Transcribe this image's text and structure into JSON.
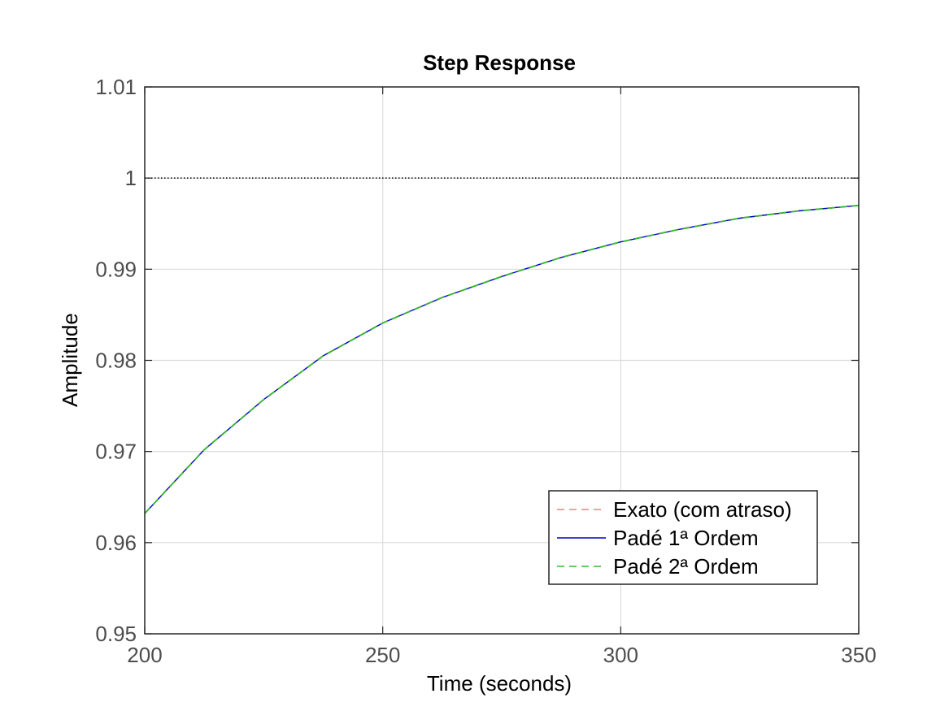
{
  "chart_data": {
    "type": "line",
    "title": "Step Response",
    "xlabel": "Time (seconds)",
    "ylabel": "Amplitude",
    "xlim": [
      200,
      350
    ],
    "ylim": [
      0.95,
      1.01
    ],
    "grid": true,
    "legend_position": "bottom-right",
    "x_ticks": [
      200,
      250,
      300,
      350
    ],
    "x_tick_labels": [
      "200",
      "250",
      "300",
      "350"
    ],
    "y_ticks": [
      0.95,
      0.96,
      0.97,
      0.98,
      0.99,
      1.0,
      1.01
    ],
    "y_tick_labels": [
      "0.95",
      "0.96",
      "0.97",
      "0.98",
      "0.99",
      "1",
      "1.01"
    ],
    "reference_line": {
      "y": 1.0,
      "color": "#000000",
      "style": "dotted"
    },
    "x": [
      200,
      212.5,
      225,
      237.5,
      250,
      262.5,
      275,
      287.5,
      300,
      312.5,
      325,
      337.5,
      350
    ],
    "series": [
      {
        "name": "Exato (com atraso)",
        "color": "#f08080",
        "style": "dashed",
        "values": [
          0.9632,
          0.9702,
          0.9757,
          0.9805,
          0.9841,
          0.9869,
          0.9892,
          0.9913,
          0.993,
          0.9944,
          0.9956,
          0.9964,
          0.997
        ]
      },
      {
        "name": "Padé 1ª Ordem",
        "color": "#0000cc",
        "style": "solid",
        "values": [
          0.9632,
          0.9702,
          0.9757,
          0.9805,
          0.9841,
          0.9869,
          0.9892,
          0.9913,
          0.993,
          0.9944,
          0.9956,
          0.9964,
          0.997
        ]
      },
      {
        "name": "Padé 2ª Ordem",
        "color": "#33bb33",
        "style": "dashed",
        "values": [
          0.9632,
          0.9702,
          0.9757,
          0.9805,
          0.9841,
          0.9869,
          0.9892,
          0.9913,
          0.993,
          0.9944,
          0.9956,
          0.9964,
          0.997
        ]
      }
    ]
  }
}
